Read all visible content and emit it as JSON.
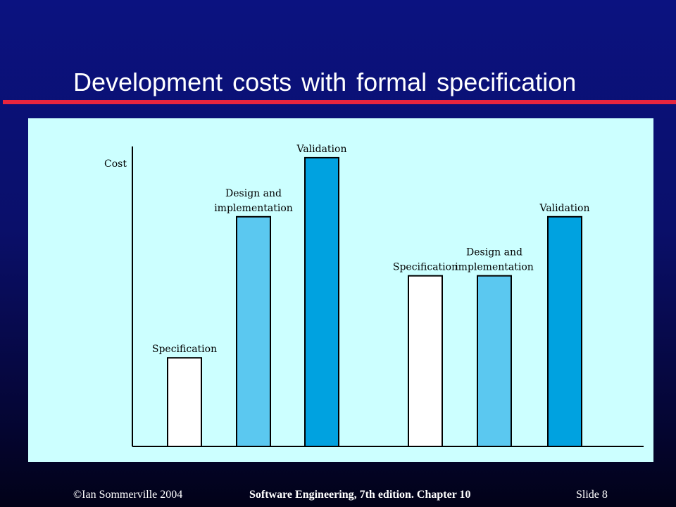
{
  "slide": {
    "title": "Development costs with formal specification",
    "footer_left": "©Ian Sommerville 2004",
    "footer_center": "Software Engineering, 7th edition. Chapter 10",
    "footer_right": "Slide  8"
  },
  "colors": {
    "background": "#0b1280",
    "title_rule": "#e8253e",
    "chart_background": "#ccffff",
    "specification": "#ffffff",
    "design_and_implementation": "#5bc8f0",
    "validation": "#00a2e0"
  },
  "chart_data": {
    "type": "bar",
    "title": "",
    "xlabel": "",
    "ylabel": "Cost",
    "ylim": [
      0,
      100
    ],
    "grid": false,
    "legend": "none",
    "y_tick_labels": false,
    "bars": [
      {
        "group": 1,
        "label": [
          "Specification"
        ],
        "value": 27,
        "color": "#ffffff"
      },
      {
        "group": 1,
        "label": [
          "Design and",
          "implementation"
        ],
        "value": 70,
        "color": "#5bc8f0"
      },
      {
        "group": 1,
        "label": [
          "Validation"
        ],
        "value": 88,
        "color": "#00a2e0"
      },
      {
        "group": 2,
        "label": [
          "Specification"
        ],
        "value": 52,
        "color": "#ffffff"
      },
      {
        "group": 2,
        "label": [
          "Design and",
          "implementation"
        ],
        "value": 52,
        "color": "#5bc8f0"
      },
      {
        "group": 2,
        "label": [
          "Validation"
        ],
        "value": 70,
        "color": "#00a2e0"
      }
    ]
  }
}
